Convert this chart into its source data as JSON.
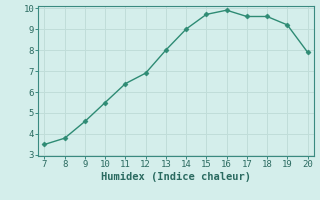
{
  "x": [
    7,
    8,
    9,
    10,
    11,
    12,
    13,
    14,
    15,
    16,
    17,
    18,
    19,
    20
  ],
  "y": [
    3.5,
    3.8,
    4.6,
    5.5,
    6.4,
    6.9,
    8.0,
    9.0,
    9.7,
    9.9,
    9.6,
    9.6,
    9.2,
    7.9
  ],
  "xlabel": "Humidex (Indice chaleur)",
  "line_color": "#2e8b74",
  "bg_color": "#d4eeeb",
  "grid_color": "#c0ddd9",
  "ylim": [
    3,
    10
  ],
  "xlim": [
    7,
    20
  ],
  "yticks": [
    3,
    4,
    5,
    6,
    7,
    8,
    9,
    10
  ],
  "xticks": [
    7,
    8,
    9,
    10,
    11,
    12,
    13,
    14,
    15,
    16,
    17,
    18,
    19,
    20
  ],
  "marker": "D",
  "marker_size": 2.5,
  "line_width": 1.0,
  "xlabel_fontsize": 7.5,
  "tick_fontsize": 6.5,
  "spine_color": "#3a8a80"
}
